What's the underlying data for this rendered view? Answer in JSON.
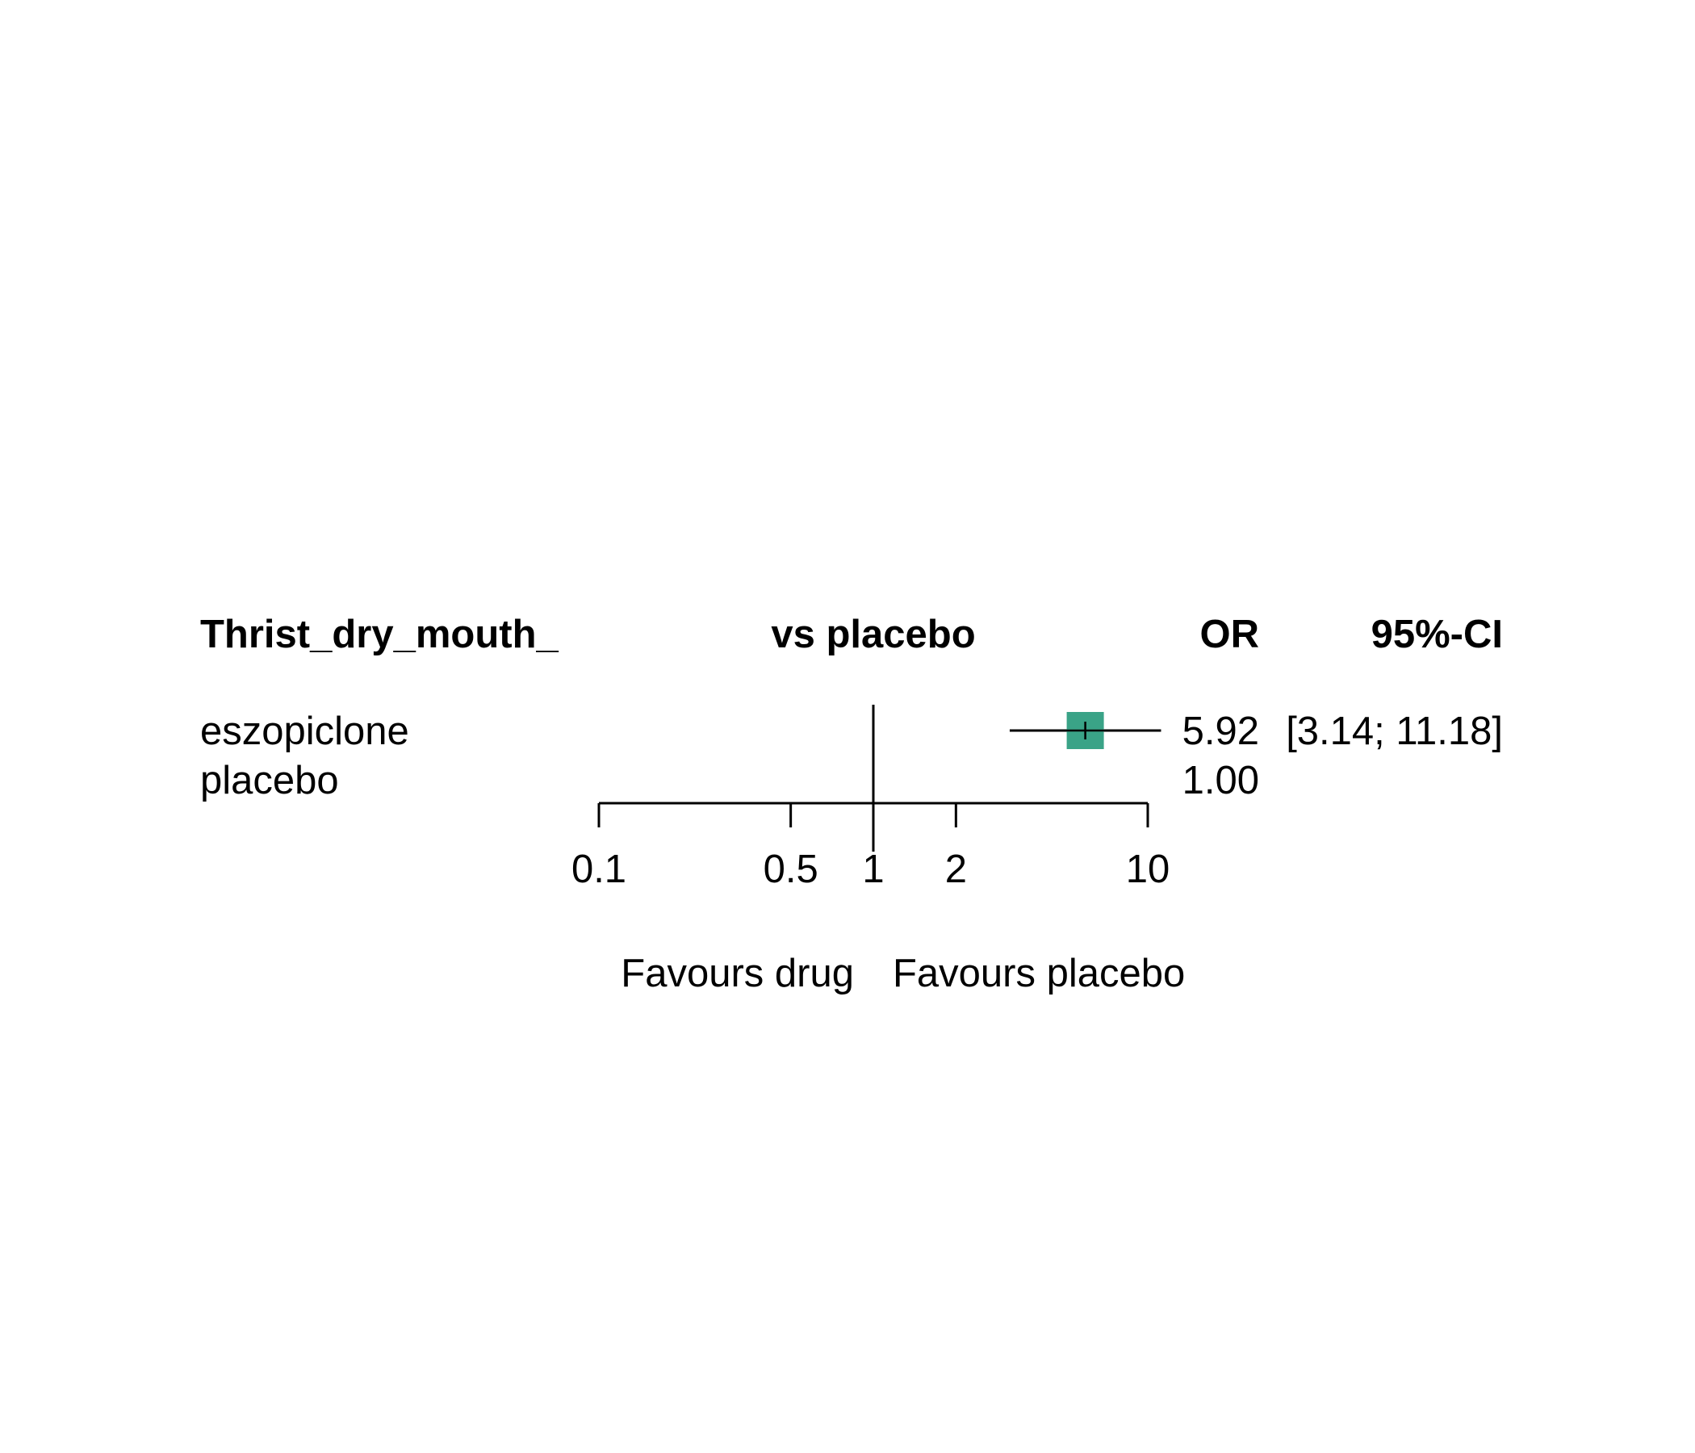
{
  "chart_data": {
    "type": "forest",
    "headers": {
      "outcome": "Thrist_dry_mouth_",
      "comparison": "vs placebo",
      "estimate": "OR",
      "ci": "95%-CI"
    },
    "rows": [
      {
        "label": "eszopiclone",
        "or": 5.92,
        "lower": 3.14,
        "upper": 11.18,
        "or_text": "5.92",
        "ci_text": "[3.14; 11.18]"
      },
      {
        "label": "placebo",
        "or": 1.0,
        "or_text": "1.00",
        "ci_text": ""
      }
    ],
    "x_axis": {
      "scale": "log",
      "ticks": [
        0.1,
        0.5,
        1,
        2,
        10
      ],
      "tick_labels": [
        "0.1",
        "0.5",
        "1",
        "2",
        "10"
      ],
      "range": [
        0.1,
        10
      ],
      "reference_line": 1
    },
    "favours": {
      "left": "Favours drug",
      "right": "Favours placebo"
    },
    "marker_color": "#3aa387"
  }
}
